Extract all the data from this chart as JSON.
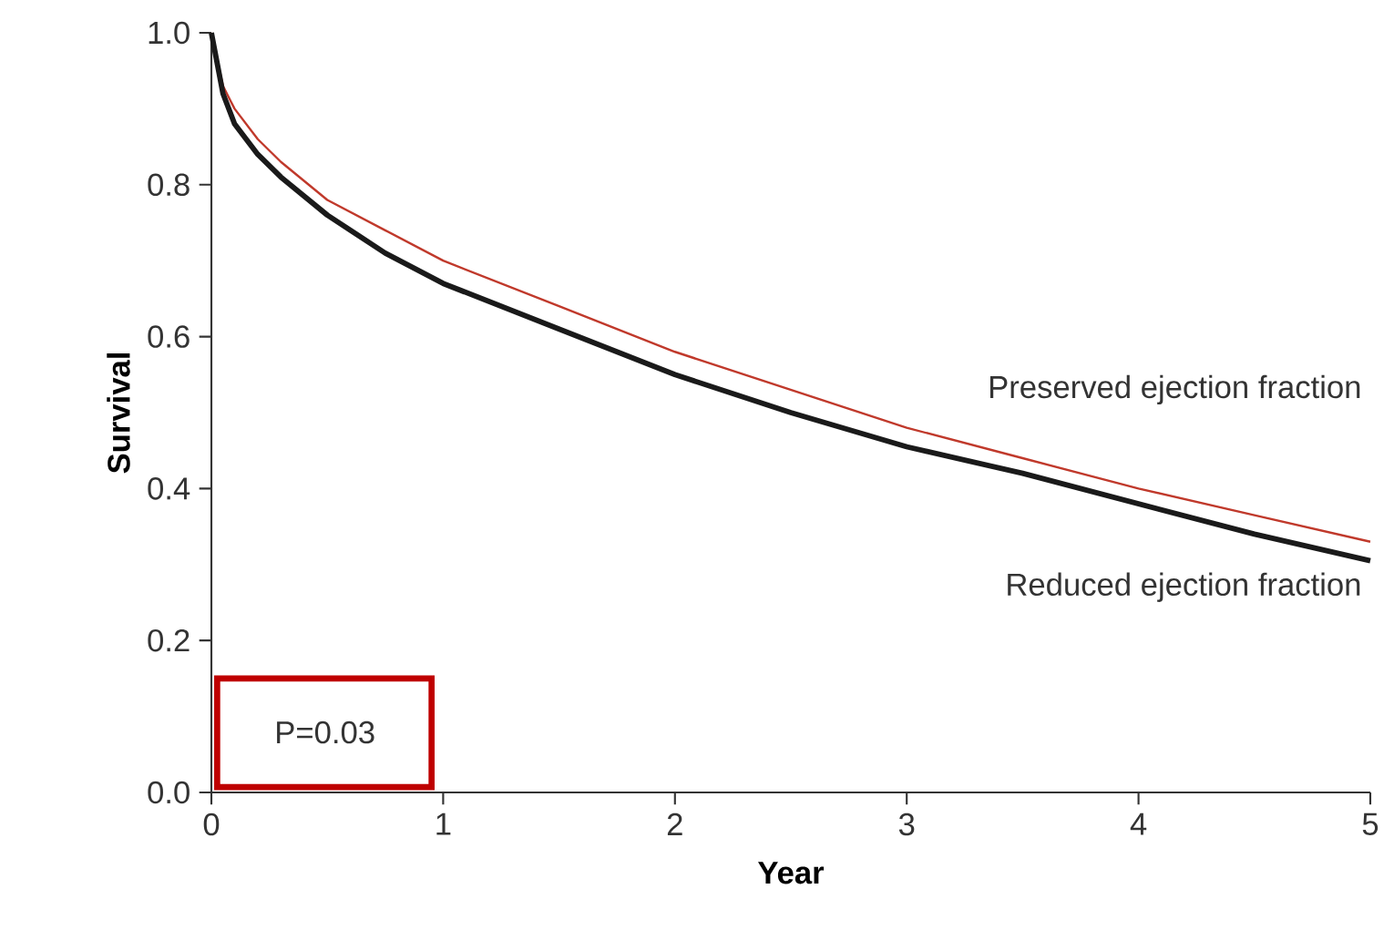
{
  "chart_data": {
    "type": "line",
    "xlabel": "Year",
    "ylabel": "Survival",
    "xlim": [
      0,
      5
    ],
    "ylim": [
      0,
      1.0
    ],
    "xticks": [
      0,
      1,
      2,
      3,
      4,
      5
    ],
    "yticks": [
      {
        "value": 0,
        "label": "0.0"
      },
      0.2,
      0.4,
      0.6,
      0.8,
      {
        "value": 1,
        "label": "1.0"
      }
    ],
    "x": [
      0,
      0.05,
      0.1,
      0.2,
      0.3,
      0.5,
      0.75,
      1,
      1.5,
      2,
      2.5,
      3,
      3.5,
      4,
      4.5,
      5
    ],
    "series": [
      {
        "name": "Preserved ejection fraction",
        "color": "#c0392b",
        "values": [
          1.0,
          0.93,
          0.9,
          0.86,
          0.83,
          0.78,
          0.74,
          0.7,
          0.64,
          0.58,
          0.53,
          0.48,
          0.44,
          0.4,
          0.365,
          0.33
        ]
      },
      {
        "name": "Reduced ejection fraction",
        "color": "#1a1a1a",
        "values": [
          1.0,
          0.92,
          0.88,
          0.84,
          0.81,
          0.76,
          0.71,
          0.67,
          0.61,
          0.55,
          0.5,
          0.455,
          0.42,
          0.38,
          0.34,
          0.305
        ]
      }
    ],
    "annotations": [
      "P=0.03"
    ]
  }
}
